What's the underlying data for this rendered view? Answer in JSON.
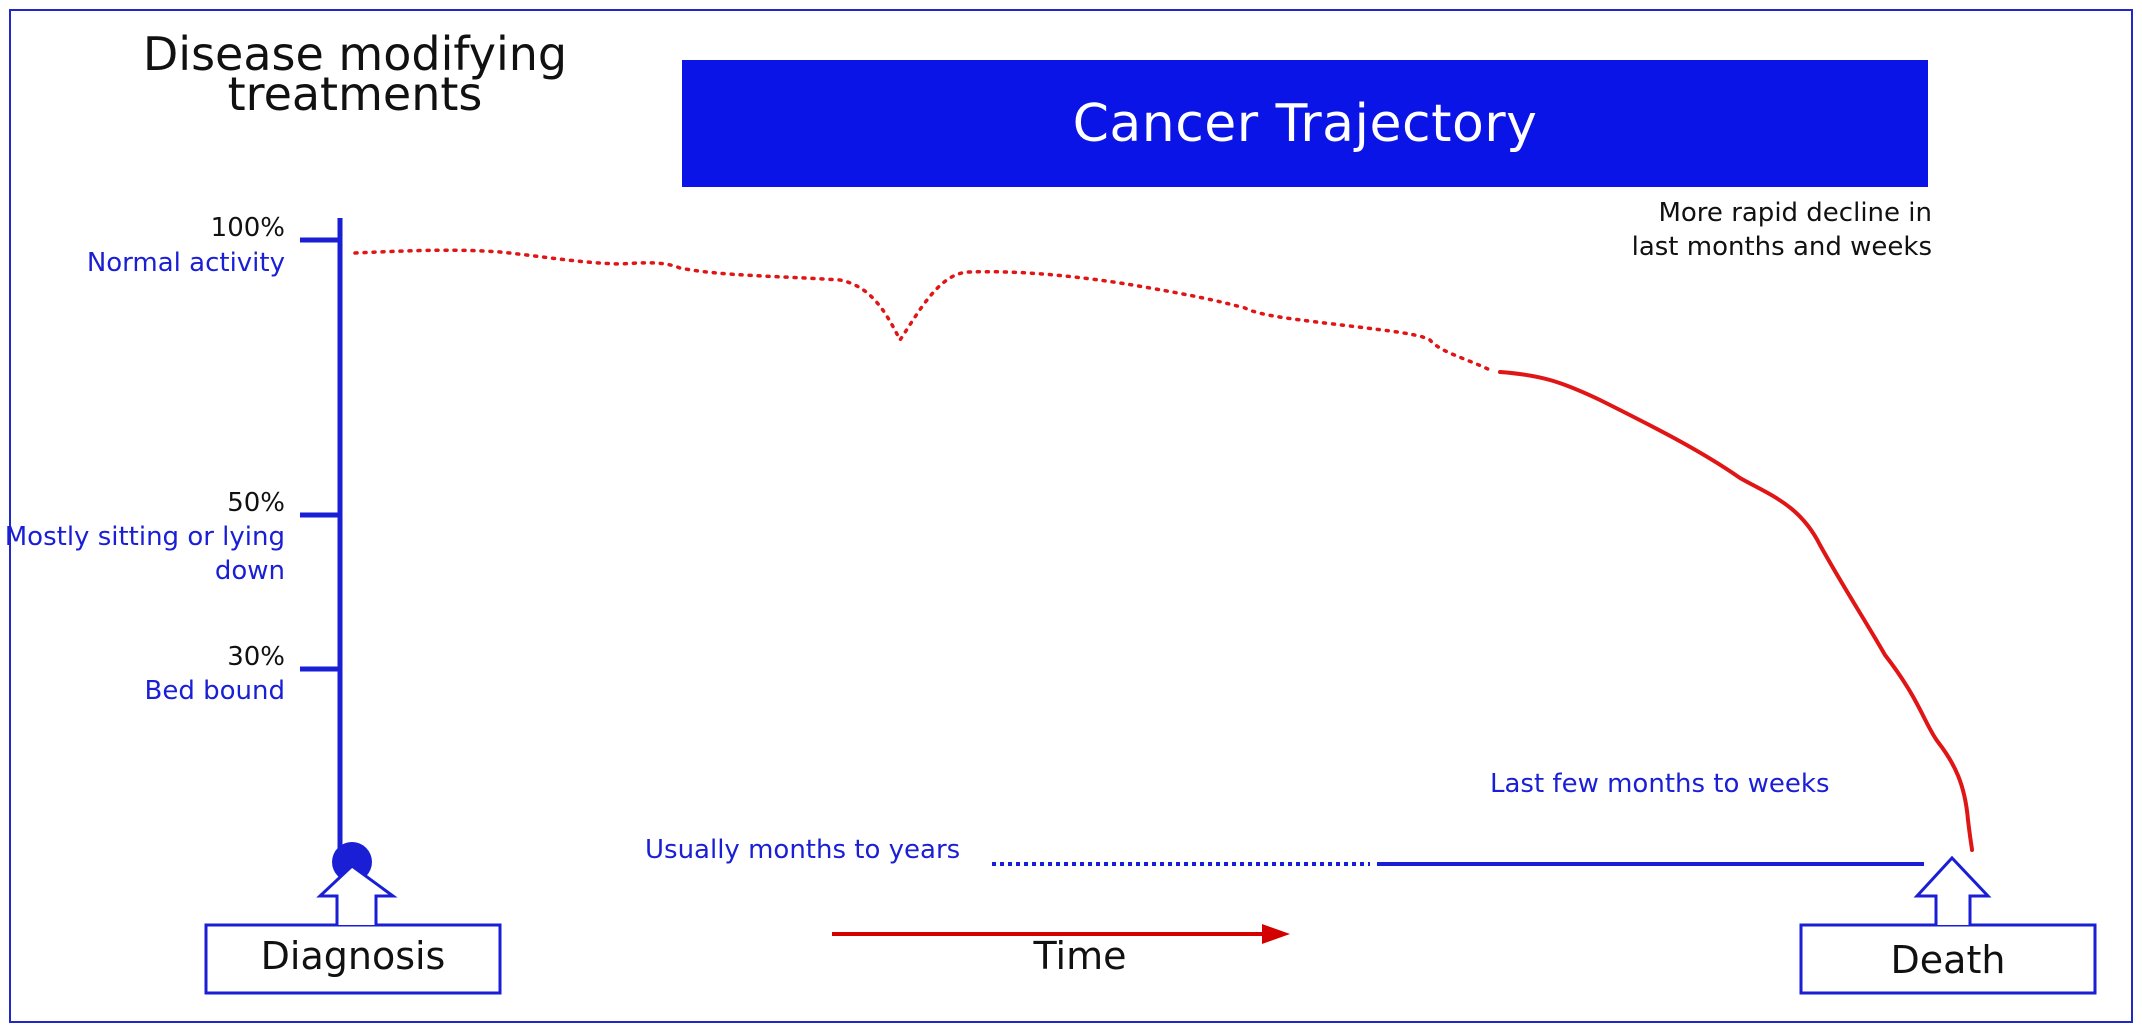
{
  "title": "Cancer Trajectory",
  "heading": [
    "Disease modifying",
    "treatments"
  ],
  "y_axis": {
    "levels": [
      {
        "percent": "100%",
        "label": "Normal activity"
      },
      {
        "percent": "50%",
        "label": "Mostly sitting or lying down"
      },
      {
        "percent": "30%",
        "label": "Bed bound"
      }
    ]
  },
  "annotations": {
    "decline_note": "More rapid decline in last months and weeks",
    "span_long": "Usually months to years",
    "span_short": "Last few months to weeks",
    "time": "Time"
  },
  "milestones": {
    "start": "Diagnosis",
    "end": "Death"
  },
  "colors": {
    "brand_blue": "#0a14e6",
    "curve_red": "#e01515",
    "time_arrow": "#d40000"
  }
}
